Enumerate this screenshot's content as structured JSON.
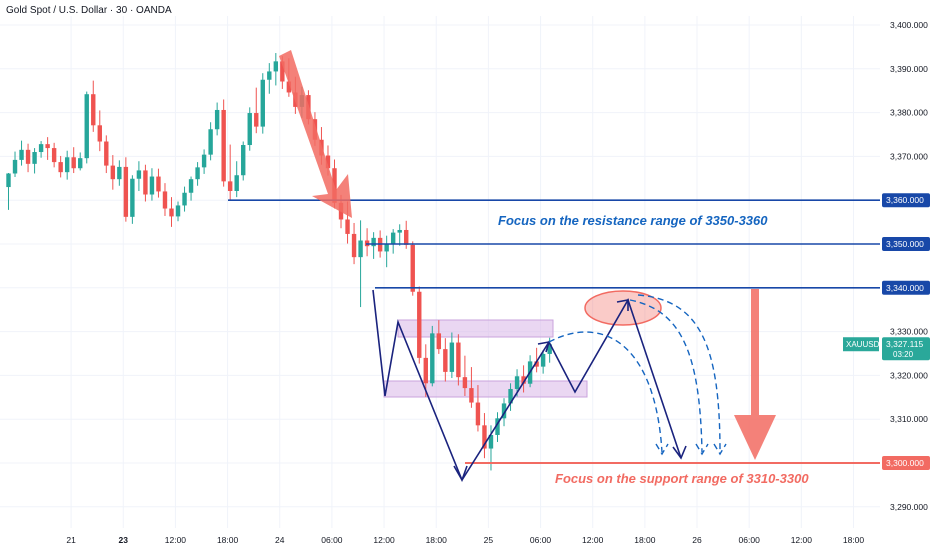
{
  "header": {
    "symbol_title": "Gold Spot / U.S. Dollar · 30 · OANDA"
  },
  "chart_data": {
    "type": "candlestick",
    "symbol": "XAUUSD",
    "timeframe": "30",
    "broker": "OANDA",
    "ylim": [
      3286,
      3404
    ],
    "y_ticks": [
      3290,
      3300,
      3310,
      3320,
      3330,
      3340,
      3350,
      3360,
      3370,
      3380,
      3390,
      3400
    ],
    "y_tick_labels": [
      "3,290.000",
      "3,300.000",
      "3,310.000",
      "3,320.000",
      "3,330.000",
      "3,340.000",
      "3,350.000",
      "3,360.000",
      "3,370.000",
      "3,380.000",
      "3,390.000",
      "3,400.000"
    ],
    "x_ticks": [
      {
        "label": "21",
        "idx": 5,
        "bold": false
      },
      {
        "label": "23",
        "idx": 13,
        "bold": true
      },
      {
        "label": "12:00",
        "idx": 21,
        "bold": false
      },
      {
        "label": "18:00",
        "idx": 29,
        "bold": false
      },
      {
        "label": "24",
        "idx": 37,
        "bold": false
      },
      {
        "label": "06:00",
        "idx": 45,
        "bold": false
      },
      {
        "label": "12:00",
        "idx": 53,
        "bold": false
      },
      {
        "label": "18:00",
        "idx": 61,
        "bold": false
      },
      {
        "label": "25",
        "idx": 69,
        "bold": false
      },
      {
        "label": "06:00",
        "idx": 77,
        "bold": false
      },
      {
        "label": "12:00",
        "idx": 85,
        "bold": false
      },
      {
        "label": "18:00",
        "idx": 93,
        "bold": false
      },
      {
        "label": "26",
        "idx": 101,
        "bold": false
      },
      {
        "label": "06:00",
        "idx": 109,
        "bold": false
      },
      {
        "label": "12:00",
        "idx": 117,
        "bold": false
      },
      {
        "label": "18:00",
        "idx": 125,
        "bold": false
      }
    ],
    "colors": {
      "up": "#26a69a",
      "down": "#ef5350",
      "level": "#1848a8",
      "support": "#f26b62",
      "zone": "#d8b6e8",
      "projection": "#1a237e"
    },
    "candles": [
      {
        "o": 3363.0,
        "h": 3366.2,
        "l": 3357.8,
        "c": 3366.1
      },
      {
        "o": 3366.1,
        "h": 3371.1,
        "l": 3365.3,
        "c": 3369.2
      },
      {
        "o": 3369.2,
        "h": 3373.6,
        "l": 3367.9,
        "c": 3371.5
      },
      {
        "o": 3371.5,
        "h": 3372.9,
        "l": 3366.4,
        "c": 3368.3
      },
      {
        "o": 3368.3,
        "h": 3371.9,
        "l": 3366.1,
        "c": 3371.0
      },
      {
        "o": 3371.0,
        "h": 3373.5,
        "l": 3369.7,
        "c": 3372.8
      },
      {
        "o": 3372.8,
        "h": 3374.4,
        "l": 3369.2,
        "c": 3371.9
      },
      {
        "o": 3371.9,
        "h": 3373.1,
        "l": 3367.5,
        "c": 3368.7
      },
      {
        "o": 3368.7,
        "h": 3370.1,
        "l": 3365.2,
        "c": 3366.4
      },
      {
        "o": 3366.4,
        "h": 3371.3,
        "l": 3364.7,
        "c": 3369.8
      },
      {
        "o": 3369.8,
        "h": 3372.1,
        "l": 3366.2,
        "c": 3367.3
      },
      {
        "o": 3367.3,
        "h": 3370.9,
        "l": 3366.8,
        "c": 3369.6
      },
      {
        "o": 3369.6,
        "h": 3384.8,
        "l": 3368.4,
        "c": 3384.2
      },
      {
        "o": 3384.2,
        "h": 3387.3,
        "l": 3375.6,
        "c": 3377.1
      },
      {
        "o": 3377.1,
        "h": 3380.5,
        "l": 3371.2,
        "c": 3373.4
      },
      {
        "o": 3373.4,
        "h": 3374.8,
        "l": 3366.2,
        "c": 3367.9
      },
      {
        "o": 3367.9,
        "h": 3370.3,
        "l": 3362.4,
        "c": 3364.8
      },
      {
        "o": 3364.8,
        "h": 3369.1,
        "l": 3363.3,
        "c": 3367.6
      },
      {
        "o": 3367.6,
        "h": 3369.8,
        "l": 3355.1,
        "c": 3356.2
      },
      {
        "o": 3356.2,
        "h": 3365.7,
        "l": 3354.6,
        "c": 3364.9
      },
      {
        "o": 3364.9,
        "h": 3368.9,
        "l": 3362.1,
        "c": 3366.8
      },
      {
        "o": 3366.8,
        "h": 3368.1,
        "l": 3359.7,
        "c": 3361.3
      },
      {
        "o": 3361.3,
        "h": 3367.3,
        "l": 3359.9,
        "c": 3365.4
      },
      {
        "o": 3365.4,
        "h": 3367.2,
        "l": 3360.6,
        "c": 3362.0
      },
      {
        "o": 3362.0,
        "h": 3363.9,
        "l": 3356.4,
        "c": 3358.1
      },
      {
        "o": 3358.1,
        "h": 3360.7,
        "l": 3353.9,
        "c": 3356.3
      },
      {
        "o": 3356.3,
        "h": 3359.7,
        "l": 3355.2,
        "c": 3358.8
      },
      {
        "o": 3358.8,
        "h": 3363.1,
        "l": 3357.4,
        "c": 3361.7
      },
      {
        "o": 3361.7,
        "h": 3365.4,
        "l": 3359.9,
        "c": 3364.8
      },
      {
        "o": 3364.8,
        "h": 3368.7,
        "l": 3363.3,
        "c": 3367.5
      },
      {
        "o": 3367.5,
        "h": 3371.6,
        "l": 3366.0,
        "c": 3370.4
      },
      {
        "o": 3370.4,
        "h": 3377.8,
        "l": 3369.1,
        "c": 3376.2
      },
      {
        "o": 3376.2,
        "h": 3382.3,
        "l": 3374.8,
        "c": 3380.6
      },
      {
        "o": 3380.6,
        "h": 3383.0,
        "l": 3363.1,
        "c": 3364.3
      },
      {
        "o": 3364.3,
        "h": 3372.7,
        "l": 3359.9,
        "c": 3362.1
      },
      {
        "o": 3362.1,
        "h": 3368.9,
        "l": 3360.7,
        "c": 3365.7
      },
      {
        "o": 3365.7,
        "h": 3373.4,
        "l": 3364.5,
        "c": 3372.6
      },
      {
        "o": 3372.6,
        "h": 3381.2,
        "l": 3371.3,
        "c": 3379.9
      },
      {
        "o": 3379.9,
        "h": 3385.7,
        "l": 3375.3,
        "c": 3376.8
      },
      {
        "o": 3376.8,
        "h": 3389.0,
        "l": 3375.2,
        "c": 3387.5
      },
      {
        "o": 3387.5,
        "h": 3391.3,
        "l": 3384.3,
        "c": 3389.4
      },
      {
        "o": 3389.4,
        "h": 3393.6,
        "l": 3386.2,
        "c": 3391.7
      },
      {
        "o": 3391.7,
        "h": 3392.9,
        "l": 3385.4,
        "c": 3387.1
      },
      {
        "o": 3387.1,
        "h": 3392.4,
        "l": 3383.6,
        "c": 3384.6
      },
      {
        "o": 3384.6,
        "h": 3388.2,
        "l": 3379.7,
        "c": 3381.3
      },
      {
        "o": 3381.3,
        "h": 3385.9,
        "l": 3378.8,
        "c": 3384.0
      },
      {
        "o": 3384.0,
        "h": 3385.1,
        "l": 3377.3,
        "c": 3378.5
      },
      {
        "o": 3378.5,
        "h": 3380.1,
        "l": 3372.4,
        "c": 3373.8
      },
      {
        "o": 3373.8,
        "h": 3376.7,
        "l": 3368.1,
        "c": 3370.2
      },
      {
        "o": 3370.2,
        "h": 3372.5,
        "l": 3365.6,
        "c": 3367.3
      },
      {
        "o": 3367.3,
        "h": 3369.3,
        "l": 3358.1,
        "c": 3359.4
      },
      {
        "o": 3359.4,
        "h": 3361.2,
        "l": 3353.6,
        "c": 3355.6
      },
      {
        "o": 3355.6,
        "h": 3359.7,
        "l": 3350.1,
        "c": 3352.3
      },
      {
        "o": 3352.3,
        "h": 3354.8,
        "l": 3345.4,
        "c": 3347.0
      },
      {
        "o": 3347.0,
        "h": 3355.4,
        "l": 3335.6,
        "c": 3350.8
      },
      {
        "o": 3350.8,
        "h": 3353.6,
        "l": 3347.2,
        "c": 3349.5
      },
      {
        "o": 3349.5,
        "h": 3352.7,
        "l": 3346.6,
        "c": 3351.4
      },
      {
        "o": 3351.4,
        "h": 3353.1,
        "l": 3346.9,
        "c": 3348.3
      },
      {
        "o": 3348.3,
        "h": 3351.9,
        "l": 3344.7,
        "c": 3350.1
      },
      {
        "o": 3350.1,
        "h": 3353.4,
        "l": 3347.8,
        "c": 3352.6
      },
      {
        "o": 3352.6,
        "h": 3354.5,
        "l": 3349.6,
        "c": 3353.2
      },
      {
        "o": 3353.2,
        "h": 3355.3,
        "l": 3348.9,
        "c": 3349.8
      },
      {
        "o": 3349.8,
        "h": 3350.6,
        "l": 3338.2,
        "c": 3339.1
      },
      {
        "o": 3339.1,
        "h": 3340.3,
        "l": 3322.7,
        "c": 3324.0
      },
      {
        "o": 3324.0,
        "h": 3327.1,
        "l": 3315.1,
        "c": 3318.2
      },
      {
        "o": 3318.2,
        "h": 3331.3,
        "l": 3317.5,
        "c": 3329.6
      },
      {
        "o": 3329.6,
        "h": 3332.6,
        "l": 3324.9,
        "c": 3326.0
      },
      {
        "o": 3326.0,
        "h": 3328.5,
        "l": 3318.6,
        "c": 3320.8
      },
      {
        "o": 3320.8,
        "h": 3329.8,
        "l": 3319.4,
        "c": 3327.5
      },
      {
        "o": 3327.5,
        "h": 3329.4,
        "l": 3317.7,
        "c": 3319.6
      },
      {
        "o": 3319.6,
        "h": 3324.5,
        "l": 3315.3,
        "c": 3317.1
      },
      {
        "o": 3317.1,
        "h": 3321.9,
        "l": 3312.6,
        "c": 3313.8
      },
      {
        "o": 3313.8,
        "h": 3317.8,
        "l": 3307.2,
        "c": 3308.6
      },
      {
        "o": 3308.6,
        "h": 3311.4,
        "l": 3301.1,
        "c": 3303.3
      },
      {
        "o": 3303.3,
        "h": 3308.6,
        "l": 3298.3,
        "c": 3306.4
      },
      {
        "o": 3306.4,
        "h": 3311.6,
        "l": 3304.8,
        "c": 3310.2
      },
      {
        "o": 3310.2,
        "h": 3314.8,
        "l": 3308.4,
        "c": 3313.6
      },
      {
        "o": 3313.6,
        "h": 3318.2,
        "l": 3311.9,
        "c": 3316.9
      },
      {
        "o": 3316.9,
        "h": 3321.4,
        "l": 3315.2,
        "c": 3319.8
      },
      {
        "o": 3319.8,
        "h": 3322.3,
        "l": 3316.1,
        "c": 3318.1
      },
      {
        "o": 3318.1,
        "h": 3324.6,
        "l": 3317.3,
        "c": 3323.2
      },
      {
        "o": 3323.2,
        "h": 3326.3,
        "l": 3320.7,
        "c": 3322.0
      },
      {
        "o": 3322.0,
        "h": 3325.8,
        "l": 3320.4,
        "c": 3324.9
      },
      {
        "o": 3324.9,
        "h": 3328.6,
        "l": 3322.9,
        "c": 3327.1
      }
    ],
    "levels": [
      {
        "price": 3360,
        "label": "3,360.000"
      },
      {
        "price": 3350,
        "label": "3,350.000"
      },
      {
        "price": 3340,
        "label": "3,340.000"
      },
      {
        "price": 3300,
        "label": "3,300.000",
        "support": true
      }
    ],
    "current_price": {
      "ticker": "XAUUSD",
      "price_label": "3,327.115",
      "countdown": "03:20",
      "price": 3327.115
    },
    "annotations": {
      "resistance_text": "Focus on the resistance range of 3350-3360",
      "support_text": "Focus on the support range of 3310-3300"
    }
  }
}
